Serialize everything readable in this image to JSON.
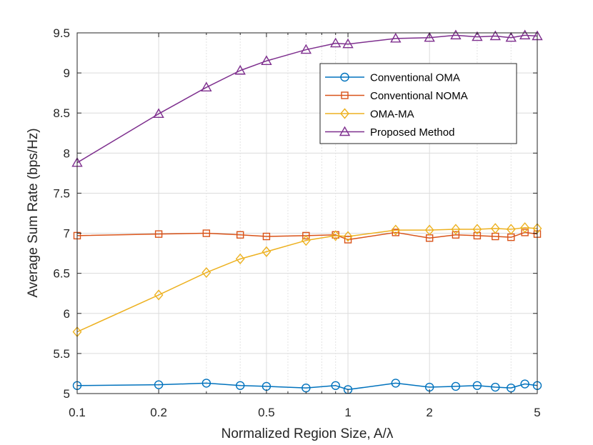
{
  "chart_data": {
    "type": "line",
    "title": "",
    "xlabel": "Normalized Region Size, A/λ",
    "ylabel": "Average Sum Rate (bps/Hz)",
    "xscale": "log",
    "xlim": [
      0.1,
      5
    ],
    "ylim": [
      5,
      9.5
    ],
    "x_ticks": [
      0.1,
      0.2,
      0.5,
      1,
      2,
      5
    ],
    "x_tick_labels": [
      "0.1",
      "0.2",
      "0.5",
      "1",
      "2",
      "5"
    ],
    "y_ticks": [
      5,
      5.5,
      6,
      6.5,
      7,
      7.5,
      8,
      8.5,
      9,
      9.5
    ],
    "y_tick_labels": [
      "5",
      "5.5",
      "6",
      "6.5",
      "7",
      "7.5",
      "8",
      "8.5",
      "9",
      "9.5"
    ],
    "grid": true,
    "legend_position": "top-right",
    "x": [
      0.1,
      0.2,
      0.3,
      0.4,
      0.5,
      0.7,
      0.9,
      1.0,
      1.5,
      2.0,
      2.5,
      3.0,
      3.5,
      4.0,
      4.5,
      5.0
    ],
    "series": [
      {
        "name": "Conventional OMA",
        "color": "#0072BD",
        "marker": "circle",
        "values": [
          5.1,
          5.11,
          5.13,
          5.1,
          5.09,
          5.07,
          5.1,
          5.05,
          5.13,
          5.08,
          5.09,
          5.1,
          5.08,
          5.07,
          5.12,
          5.1
        ]
      },
      {
        "name": "Conventional NOMA",
        "color": "#D95319",
        "marker": "square",
        "values": [
          6.97,
          6.99,
          7.0,
          6.98,
          6.96,
          6.97,
          6.98,
          6.92,
          7.01,
          6.94,
          6.98,
          6.97,
          6.96,
          6.95,
          7.01,
          6.99
        ]
      },
      {
        "name": "OMA-MA",
        "color": "#EDB120",
        "marker": "diamond",
        "values": [
          5.77,
          6.23,
          6.51,
          6.68,
          6.77,
          6.91,
          6.97,
          6.96,
          7.04,
          7.04,
          7.05,
          7.05,
          7.06,
          7.05,
          7.07,
          7.06
        ]
      },
      {
        "name": "Proposed Method",
        "color": "#7E2F8E",
        "marker": "triangle",
        "values": [
          7.88,
          8.49,
          8.82,
          9.03,
          9.15,
          9.29,
          9.37,
          9.36,
          9.43,
          9.44,
          9.47,
          9.45,
          9.46,
          9.44,
          9.47,
          9.46
        ]
      }
    ]
  }
}
